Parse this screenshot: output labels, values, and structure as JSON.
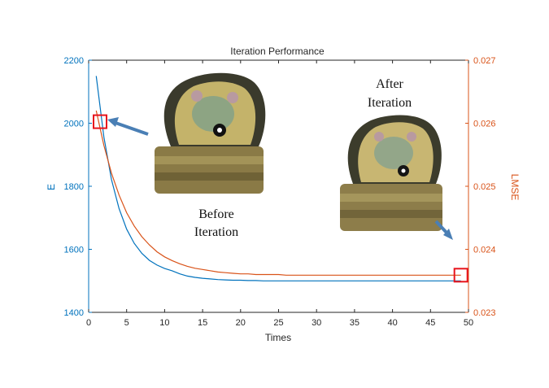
{
  "chart_data": {
    "type": "line",
    "title": "Iteration Performance",
    "xlabel": "Times",
    "ylabel_left": "E",
    "ylabel_right": "LMSE",
    "xlim": [
      0,
      50
    ],
    "ylim_left": [
      1400,
      2200
    ],
    "ylim_right": [
      0.023,
      0.027
    ],
    "xticks": [
      "0",
      "5",
      "10",
      "15",
      "20",
      "25",
      "30",
      "35",
      "40",
      "45",
      "50"
    ],
    "yticks_left": [
      "1400",
      "1600",
      "1800",
      "2000",
      "2200"
    ],
    "yticks_right": [
      "0.023",
      "0.024",
      "0.025",
      "0.026",
      "0.027"
    ],
    "x": [
      1,
      2,
      3,
      4,
      5,
      6,
      7,
      8,
      9,
      10,
      11,
      12,
      13,
      14,
      15,
      16,
      17,
      18,
      19,
      20,
      21,
      22,
      23,
      24,
      25,
      26,
      27,
      28,
      29,
      30,
      31,
      32,
      33,
      34,
      35,
      36,
      37,
      38,
      39,
      40,
      41,
      42,
      43,
      44,
      45,
      46,
      47,
      48,
      49
    ],
    "series": [
      {
        "axis": "left",
        "color": "#0072bd",
        "values": [
          2150,
          1957,
          1822,
          1729,
          1664,
          1619,
          1587,
          1565,
          1550,
          1539,
          1532,
          1522,
          1515,
          1511,
          1508,
          1506,
          1504,
          1503,
          1502,
          1502,
          1501,
          1501,
          1500,
          1500,
          1500,
          1500,
          1500,
          1500,
          1500,
          1500,
          1500,
          1500,
          1500,
          1500,
          1500,
          1500,
          1500,
          1500,
          1500,
          1500,
          1500,
          1500,
          1500,
          1500,
          1500,
          1500,
          1500,
          1500,
          1500
        ]
      },
      {
        "axis": "right",
        "color": "#d95319",
        "values": [
          0.0262,
          0.02565,
          0.02521,
          0.02486,
          0.02458,
          0.02437,
          0.0242,
          0.02407,
          0.02396,
          0.02388,
          0.02382,
          0.02377,
          0.02373,
          0.0237,
          0.02368,
          0.02366,
          0.02364,
          0.02363,
          0.02362,
          0.02361,
          0.02361,
          0.0236,
          0.0236,
          0.0236,
          0.0236,
          0.02359,
          0.02359,
          0.02359,
          0.02359,
          0.02359,
          0.02359,
          0.02359,
          0.02359,
          0.02359,
          0.02359,
          0.02359,
          0.02359,
          0.02359,
          0.02359,
          0.02359,
          0.02359,
          0.02359,
          0.02359,
          0.02359,
          0.02359,
          0.02359,
          0.02359,
          0.02359,
          0.02359
        ]
      }
    ],
    "grid": false,
    "highlights": [
      {
        "axis": "left",
        "x": 1.5,
        "y": 2005
      },
      {
        "axis": "right",
        "x": 49,
        "y": 0.02359
      }
    ],
    "annotations": [
      {
        "lines": [
          "Before",
          "Iteration"
        ]
      },
      {
        "lines": [
          "After",
          "Iteration"
        ]
      }
    ],
    "colors": {
      "left_axis": "#0072bd",
      "right_axis": "#d95319",
      "highlight_box": "#e8141c",
      "arrow": "#4a7fb5"
    }
  }
}
